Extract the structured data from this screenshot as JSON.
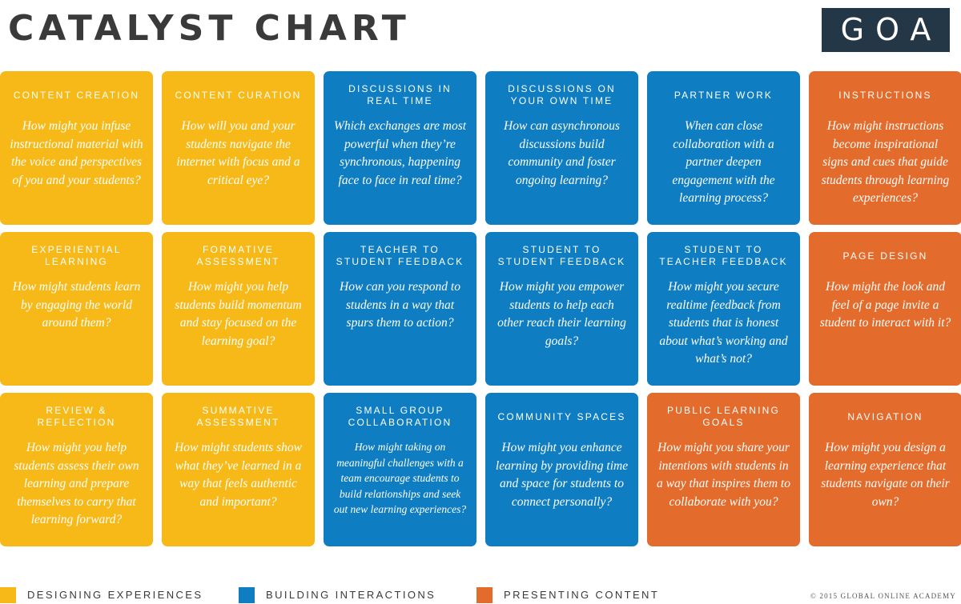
{
  "header": {
    "title": "CATALYST CHART",
    "logo_text": "GOA"
  },
  "cards": [
    {
      "title": "CONTENT CREATION",
      "question": "How might you infuse instructional material with the voice and perspectives of you and your students?",
      "category": "designing"
    },
    {
      "title": "CONTENT CURATION",
      "question": "How will you and your students navigate the internet with focus and a critical eye?",
      "category": "designing"
    },
    {
      "title": "DISCUSSIONS IN REAL TIME",
      "question": "Which exchanges are most powerful when they’re synchronous, happening face to face in real time?",
      "category": "building"
    },
    {
      "title": "DISCUSSIONS ON YOUR OWN TIME",
      "question": "How can asynchronous discussions build community and foster ongoing learning?",
      "category": "building"
    },
    {
      "title": "PARTNER WORK",
      "question": "When can close collaboration with a partner deepen engagement with the learning process?",
      "category": "building"
    },
    {
      "title": "INSTRUCTIONS",
      "question": "How might instructions become inspirational signs and cues that guide students through learning experiences?",
      "category": "presenting"
    },
    {
      "title": "EXPERIENTIAL LEARNING",
      "question": "How might students learn by engaging the world around them?",
      "category": "designing"
    },
    {
      "title": "FORMATIVE ASSESSMENT",
      "question": "How might you help students build momentum and stay focused on the learning goal?",
      "category": "designing"
    },
    {
      "title": "TEACHER TO STUDENT FEEDBACK",
      "question": "How can you respond to students in a way that spurs them to action?",
      "category": "building"
    },
    {
      "title": "STUDENT TO STUDENT FEEDBACK",
      "question": "How might you empower students to help each other reach their learning goals?",
      "category": "building"
    },
    {
      "title": "STUDENT TO TEACHER FEEDBACK",
      "question": "How might you secure realtime feedback from students that is honest about what’s working and what’s not?",
      "category": "building"
    },
    {
      "title": "PAGE DESIGN",
      "question": "How might the look and feel of a page invite a student to interact with it?",
      "category": "presenting"
    },
    {
      "title": "REVIEW & REFLECTION",
      "question": "How might you help students assess their own learning and prepare themselves to carry that learning forward?",
      "category": "designing"
    },
    {
      "title": "SUMMATIVE ASSESSMENT",
      "question": "How might students show what they’ve learned in a way that feels authentic and important?",
      "category": "designing"
    },
    {
      "title": "SMALL GROUP COLLABORATION",
      "question": "How might taking on meaningful challenges with a team encourage students to build relationships and seek out new learning experiences?",
      "category": "building",
      "small": true
    },
    {
      "title": "COMMUNITY SPACES",
      "question": "How might you enhance learning by providing time and space for students to connect personally?",
      "category": "building"
    },
    {
      "title": "PUBLIC LEARNING GOALS",
      "question": "How might you share your intentions with students in a way that inspires them to collaborate with you?",
      "category": "presenting"
    },
    {
      "title": "NAVIGATION",
      "question": "How might you design a learning experience that students navigate on their own?",
      "category": "presenting"
    }
  ],
  "legend": [
    {
      "label": "DESIGNING EXPERIENCES",
      "color": "#f6b918"
    },
    {
      "label": "BUILDING INTERACTIONS",
      "color": "#0e7dc1"
    },
    {
      "label": "PRESENTING CONTENT",
      "color": "#e36b2c"
    }
  ],
  "colors": {
    "designing": "#f6b918",
    "building": "#0e7dc1",
    "presenting": "#e36b2c",
    "logo_bg": "#243746",
    "title_text": "#3a3a3a"
  },
  "footer": {
    "copyright": "© 2015 GLOBAL ONLINE ACADEMY"
  }
}
